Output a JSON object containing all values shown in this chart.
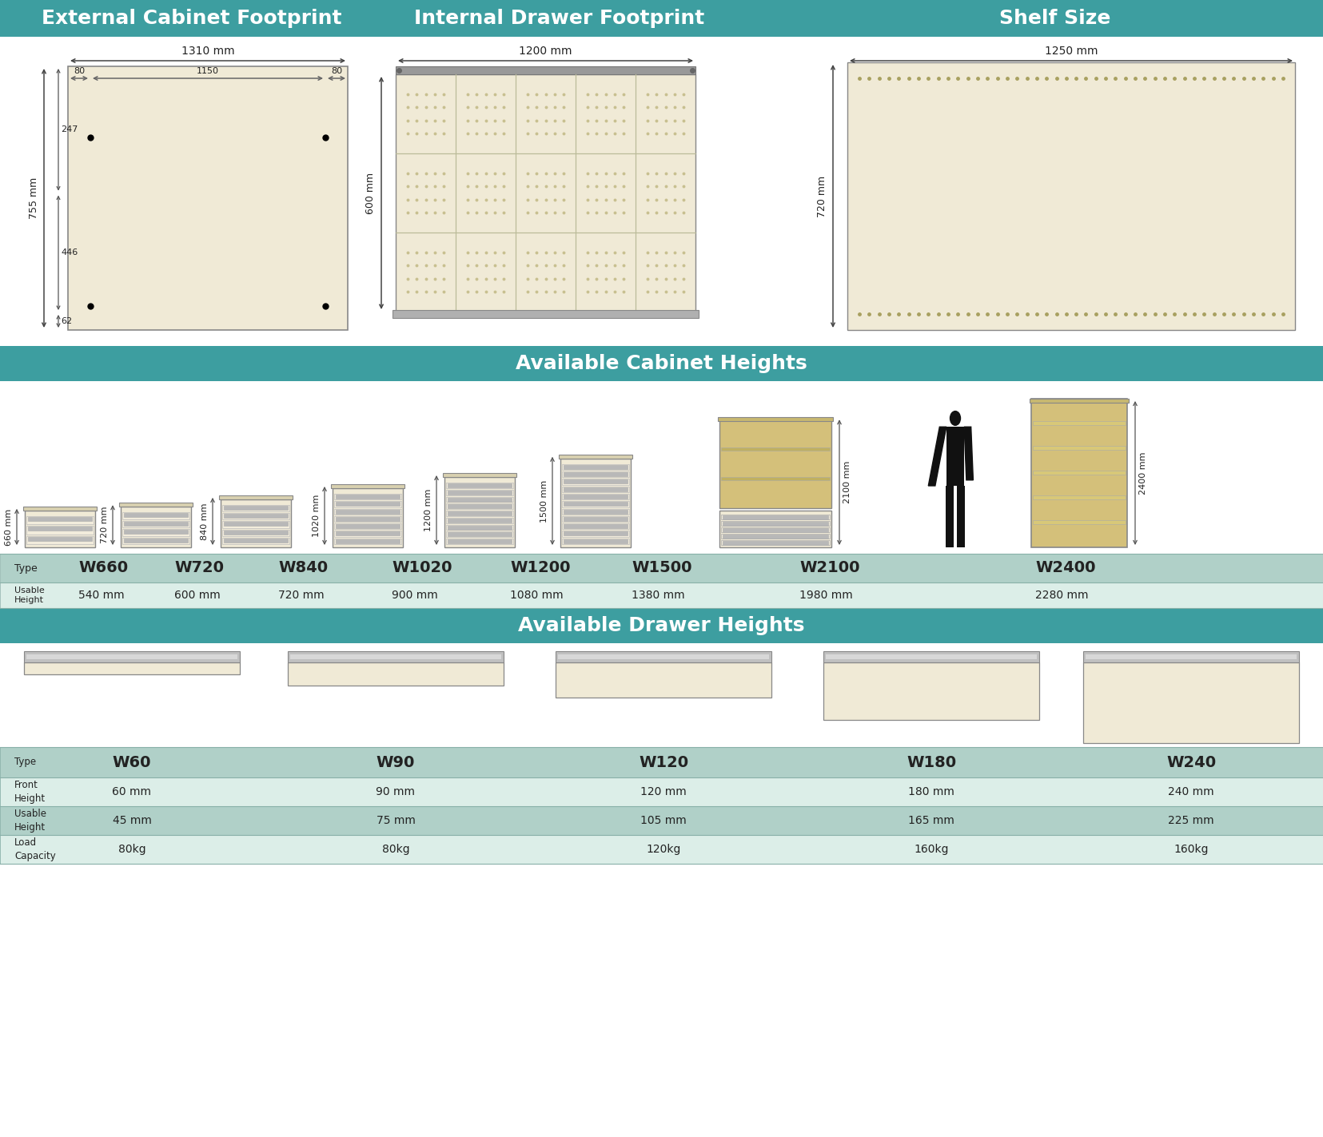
{
  "bg_color": "#ffffff",
  "teal_color": "#3d9ea0",
  "cream_color": "#f0ead6",
  "cream_dark": "#d4c07a",
  "cream_med": "#e8dfa8",
  "silver_color": "#b8b8b8",
  "dark_color": "#222222",
  "gray_dim": "#555555",
  "table_bg": "#c8ddd8",
  "table_alt": "#dceee8",
  "table_type_bg": "#b0d0c8",
  "section1_title": "External Cabinet Footprint",
  "section2_title": "Internal Drawer Footprint",
  "section3_title": "Shelf Size",
  "section_heights_title": "Available Cabinet Heights",
  "section_drawers_title": "Available Drawer Heights",
  "cabinet_types": [
    "W660",
    "W720",
    "W840",
    "W1020",
    "W1200",
    "W1500",
    "W2100",
    "W2400"
  ],
  "cabinet_heights_mm": [
    660,
    720,
    840,
    1020,
    1200,
    1500,
    2100,
    2400
  ],
  "drawer_counts": [
    3,
    4,
    5,
    7,
    9,
    11,
    5,
    0
  ],
  "usable_heights": [
    "540 mm",
    "600 mm",
    "720 mm",
    "900 mm",
    "1080 mm",
    "1380 mm",
    "1980 mm",
    "2280 mm"
  ],
  "drawer_types": [
    "W60",
    "W90",
    "W120",
    "W180",
    "W240"
  ],
  "front_heights_mm": [
    60,
    90,
    120,
    180,
    240
  ],
  "front_heights": [
    "60 mm",
    "90 mm",
    "120 mm",
    "180 mm",
    "240 mm"
  ],
  "usable_drawer_heights": [
    "45 mm",
    "75 mm",
    "105 mm",
    "165 mm",
    "225 mm"
  ],
  "load_capacities": [
    "80kg",
    "80kg",
    "120kg",
    "160kg",
    "160kg"
  ],
  "fig_w": 16.55,
  "fig_h": 14.23,
  "dpi": 100
}
